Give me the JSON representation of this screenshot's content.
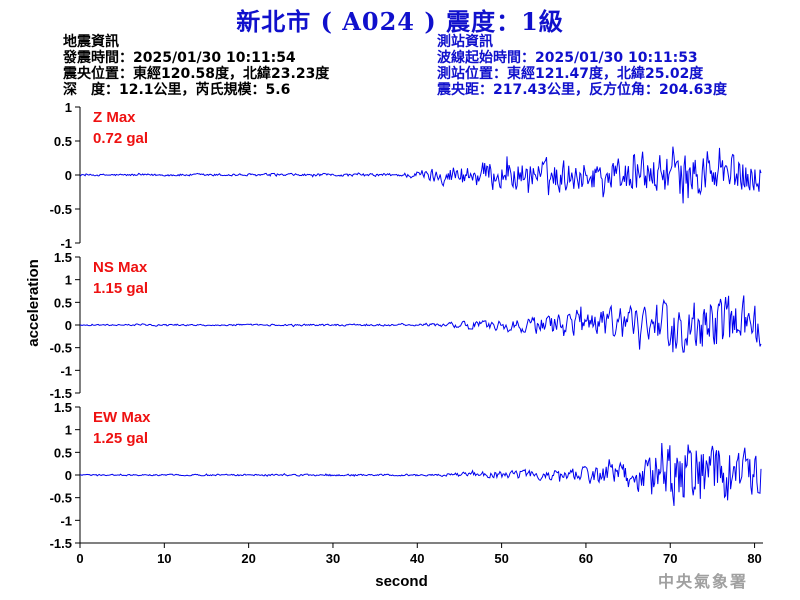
{
  "title": "新北市 ( A024 ) 震度：1級",
  "earthquake_info": {
    "heading": "地震資訊",
    "origin_time": "發震時間：2025/01/30 10:11:54",
    "epicenter": "震央位置：東經120.58度，北緯23.23度",
    "depth_magnitude": "深　度：12.1公里，芮氏規模：5.6"
  },
  "station_info": {
    "heading": "測站資訊",
    "wave_start_time": "波線起始時間：2025/01/30 10:11:53",
    "station_location": "測站位置：東經121.47度，北緯25.02度",
    "distance_azimuth": "震央距：217.43公里，反方位角：204.63度"
  },
  "watermark": "中央氣象署",
  "colors": {
    "title": "#1010cc",
    "trace": "#0000ee",
    "max_label": "#ee1111"
  },
  "chart_data": {
    "type": "line",
    "xlabel": "second",
    "ylabel": "acceleration",
    "xlim": [
      0,
      81
    ],
    "xticks": [
      0,
      10,
      20,
      30,
      40,
      50,
      60,
      70,
      80
    ],
    "grid": false,
    "panels": [
      {
        "name": "Z",
        "max_label": "Z Max",
        "max_value": "0.72 gal",
        "ylim": [
          -1,
          1
        ],
        "yticks": [
          1,
          0.5,
          0,
          -0.5,
          -1
        ],
        "envelope": [
          [
            0,
            0.02
          ],
          [
            38,
            0.03
          ],
          [
            41,
            0.12
          ],
          [
            45,
            0.22
          ],
          [
            50,
            0.3
          ],
          [
            56,
            0.3
          ],
          [
            62,
            0.32
          ],
          [
            68,
            0.38
          ],
          [
            72,
            0.45
          ],
          [
            76,
            0.45
          ],
          [
            81,
            0.3
          ]
        ]
      },
      {
        "name": "NS",
        "max_label": "NS Max",
        "max_value": "1.15 gal",
        "ylim": [
          -1.5,
          1.5
        ],
        "yticks": [
          1.5,
          1,
          0.5,
          0,
          -0.5,
          -1,
          -1.5
        ],
        "envelope": [
          [
            0,
            0.02
          ],
          [
            40,
            0.03
          ],
          [
            44,
            0.08
          ],
          [
            50,
            0.15
          ],
          [
            56,
            0.3
          ],
          [
            62,
            0.45
          ],
          [
            67,
            0.55
          ],
          [
            71,
            0.75
          ],
          [
            75,
            0.85
          ],
          [
            79,
            0.75
          ],
          [
            81,
            0.6
          ]
        ]
      },
      {
        "name": "EW",
        "max_label": "EW Max",
        "max_value": "1.25 gal",
        "ylim": [
          -1.5,
          1.5
        ],
        "yticks": [
          1.5,
          1,
          0.5,
          0,
          -0.5,
          -1,
          -1.5
        ],
        "envelope": [
          [
            0,
            0.02
          ],
          [
            42,
            0.03
          ],
          [
            46,
            0.08
          ],
          [
            52,
            0.12
          ],
          [
            58,
            0.18
          ],
          [
            63,
            0.3
          ],
          [
            66,
            0.55
          ],
          [
            70,
            0.85
          ],
          [
            73,
            1.0
          ],
          [
            76,
            0.95
          ],
          [
            79,
            0.7
          ],
          [
            81,
            0.55
          ]
        ]
      }
    ]
  }
}
